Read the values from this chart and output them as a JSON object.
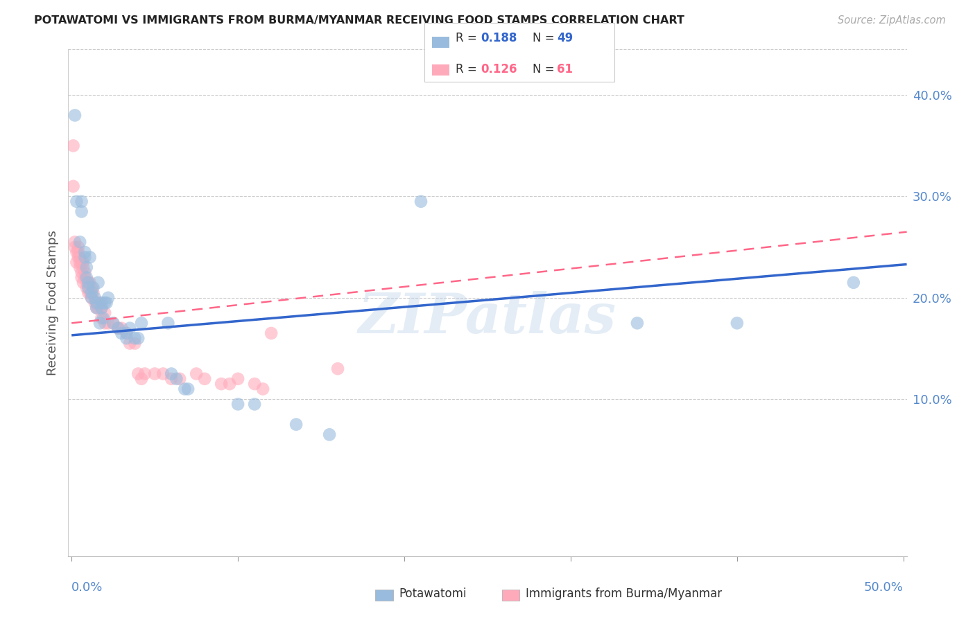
{
  "title": "POTAWATOMI VS IMMIGRANTS FROM BURMA/MYANMAR RECEIVING FOOD STAMPS CORRELATION CHART",
  "source": "Source: ZipAtlas.com",
  "ylabel": "Receiving Food Stamps",
  "ytick_labels": [
    "10.0%",
    "20.0%",
    "30.0%",
    "40.0%"
  ],
  "ytick_values": [
    0.1,
    0.2,
    0.3,
    0.4
  ],
  "xlim": [
    -0.002,
    0.502
  ],
  "ylim": [
    -0.055,
    0.445
  ],
  "color_blue": "#99BBDD",
  "color_pink": "#FFAABB",
  "color_line_blue": "#3366CC",
  "color_line_pink": "#FF6688",
  "color_axis_text": "#5588CC",
  "color_grid": "#cccccc",
  "watermark": "ZIPatlas",
  "scatter_blue": [
    [
      0.002,
      0.38
    ],
    [
      0.003,
      0.295
    ],
    [
      0.005,
      0.255
    ],
    [
      0.006,
      0.295
    ],
    [
      0.006,
      0.285
    ],
    [
      0.008,
      0.245
    ],
    [
      0.008,
      0.24
    ],
    [
      0.009,
      0.22
    ],
    [
      0.009,
      0.23
    ],
    [
      0.01,
      0.21
    ],
    [
      0.01,
      0.215
    ],
    [
      0.011,
      0.24
    ],
    [
      0.012,
      0.205
    ],
    [
      0.012,
      0.2
    ],
    [
      0.013,
      0.21
    ],
    [
      0.014,
      0.2
    ],
    [
      0.015,
      0.195
    ],
    [
      0.015,
      0.19
    ],
    [
      0.016,
      0.215
    ],
    [
      0.017,
      0.175
    ],
    [
      0.018,
      0.195
    ],
    [
      0.018,
      0.19
    ],
    [
      0.019,
      0.18
    ],
    [
      0.02,
      0.195
    ],
    [
      0.021,
      0.195
    ],
    [
      0.022,
      0.2
    ],
    [
      0.025,
      0.175
    ],
    [
      0.028,
      0.17
    ],
    [
      0.03,
      0.165
    ],
    [
      0.033,
      0.165
    ],
    [
      0.033,
      0.16
    ],
    [
      0.035,
      0.17
    ],
    [
      0.038,
      0.16
    ],
    [
      0.04,
      0.16
    ],
    [
      0.042,
      0.175
    ],
    [
      0.058,
      0.175
    ],
    [
      0.06,
      0.125
    ],
    [
      0.063,
      0.12
    ],
    [
      0.068,
      0.11
    ],
    [
      0.07,
      0.11
    ],
    [
      0.1,
      0.095
    ],
    [
      0.11,
      0.095
    ],
    [
      0.135,
      0.075
    ],
    [
      0.155,
      0.065
    ],
    [
      0.21,
      0.295
    ],
    [
      0.34,
      0.175
    ],
    [
      0.4,
      0.175
    ],
    [
      0.47,
      0.215
    ]
  ],
  "scatter_pink": [
    [
      0.001,
      0.35
    ],
    [
      0.001,
      0.31
    ],
    [
      0.002,
      0.255
    ],
    [
      0.002,
      0.25
    ],
    [
      0.003,
      0.245
    ],
    [
      0.003,
      0.235
    ],
    [
      0.004,
      0.245
    ],
    [
      0.004,
      0.24
    ],
    [
      0.004,
      0.25
    ],
    [
      0.005,
      0.24
    ],
    [
      0.005,
      0.235
    ],
    [
      0.005,
      0.23
    ],
    [
      0.006,
      0.235
    ],
    [
      0.006,
      0.225
    ],
    [
      0.006,
      0.22
    ],
    [
      0.007,
      0.235
    ],
    [
      0.007,
      0.23
    ],
    [
      0.007,
      0.215
    ],
    [
      0.008,
      0.225
    ],
    [
      0.008,
      0.22
    ],
    [
      0.009,
      0.215
    ],
    [
      0.009,
      0.21
    ],
    [
      0.01,
      0.215
    ],
    [
      0.01,
      0.205
    ],
    [
      0.011,
      0.215
    ],
    [
      0.011,
      0.205
    ],
    [
      0.012,
      0.21
    ],
    [
      0.012,
      0.2
    ],
    [
      0.013,
      0.205
    ],
    [
      0.014,
      0.195
    ],
    [
      0.015,
      0.195
    ],
    [
      0.015,
      0.19
    ],
    [
      0.016,
      0.19
    ],
    [
      0.017,
      0.195
    ],
    [
      0.018,
      0.19
    ],
    [
      0.018,
      0.18
    ],
    [
      0.02,
      0.185
    ],
    [
      0.02,
      0.175
    ],
    [
      0.022,
      0.175
    ],
    [
      0.025,
      0.175
    ],
    [
      0.028,
      0.17
    ],
    [
      0.03,
      0.17
    ],
    [
      0.033,
      0.165
    ],
    [
      0.035,
      0.155
    ],
    [
      0.038,
      0.155
    ],
    [
      0.04,
      0.125
    ],
    [
      0.042,
      0.12
    ],
    [
      0.044,
      0.125
    ],
    [
      0.05,
      0.125
    ],
    [
      0.055,
      0.125
    ],
    [
      0.06,
      0.12
    ],
    [
      0.065,
      0.12
    ],
    [
      0.075,
      0.125
    ],
    [
      0.08,
      0.12
    ],
    [
      0.09,
      0.115
    ],
    [
      0.095,
      0.115
    ],
    [
      0.1,
      0.12
    ],
    [
      0.11,
      0.115
    ],
    [
      0.115,
      0.11
    ],
    [
      0.12,
      0.165
    ],
    [
      0.16,
      0.13
    ]
  ],
  "trendline_blue": {
    "x_start": 0.0,
    "x_end": 0.502,
    "y_start": 0.163,
    "y_end": 0.233
  },
  "trendline_pink": {
    "x_start": 0.0,
    "x_end": 0.502,
    "y_start": 0.175,
    "y_end": 0.265
  }
}
